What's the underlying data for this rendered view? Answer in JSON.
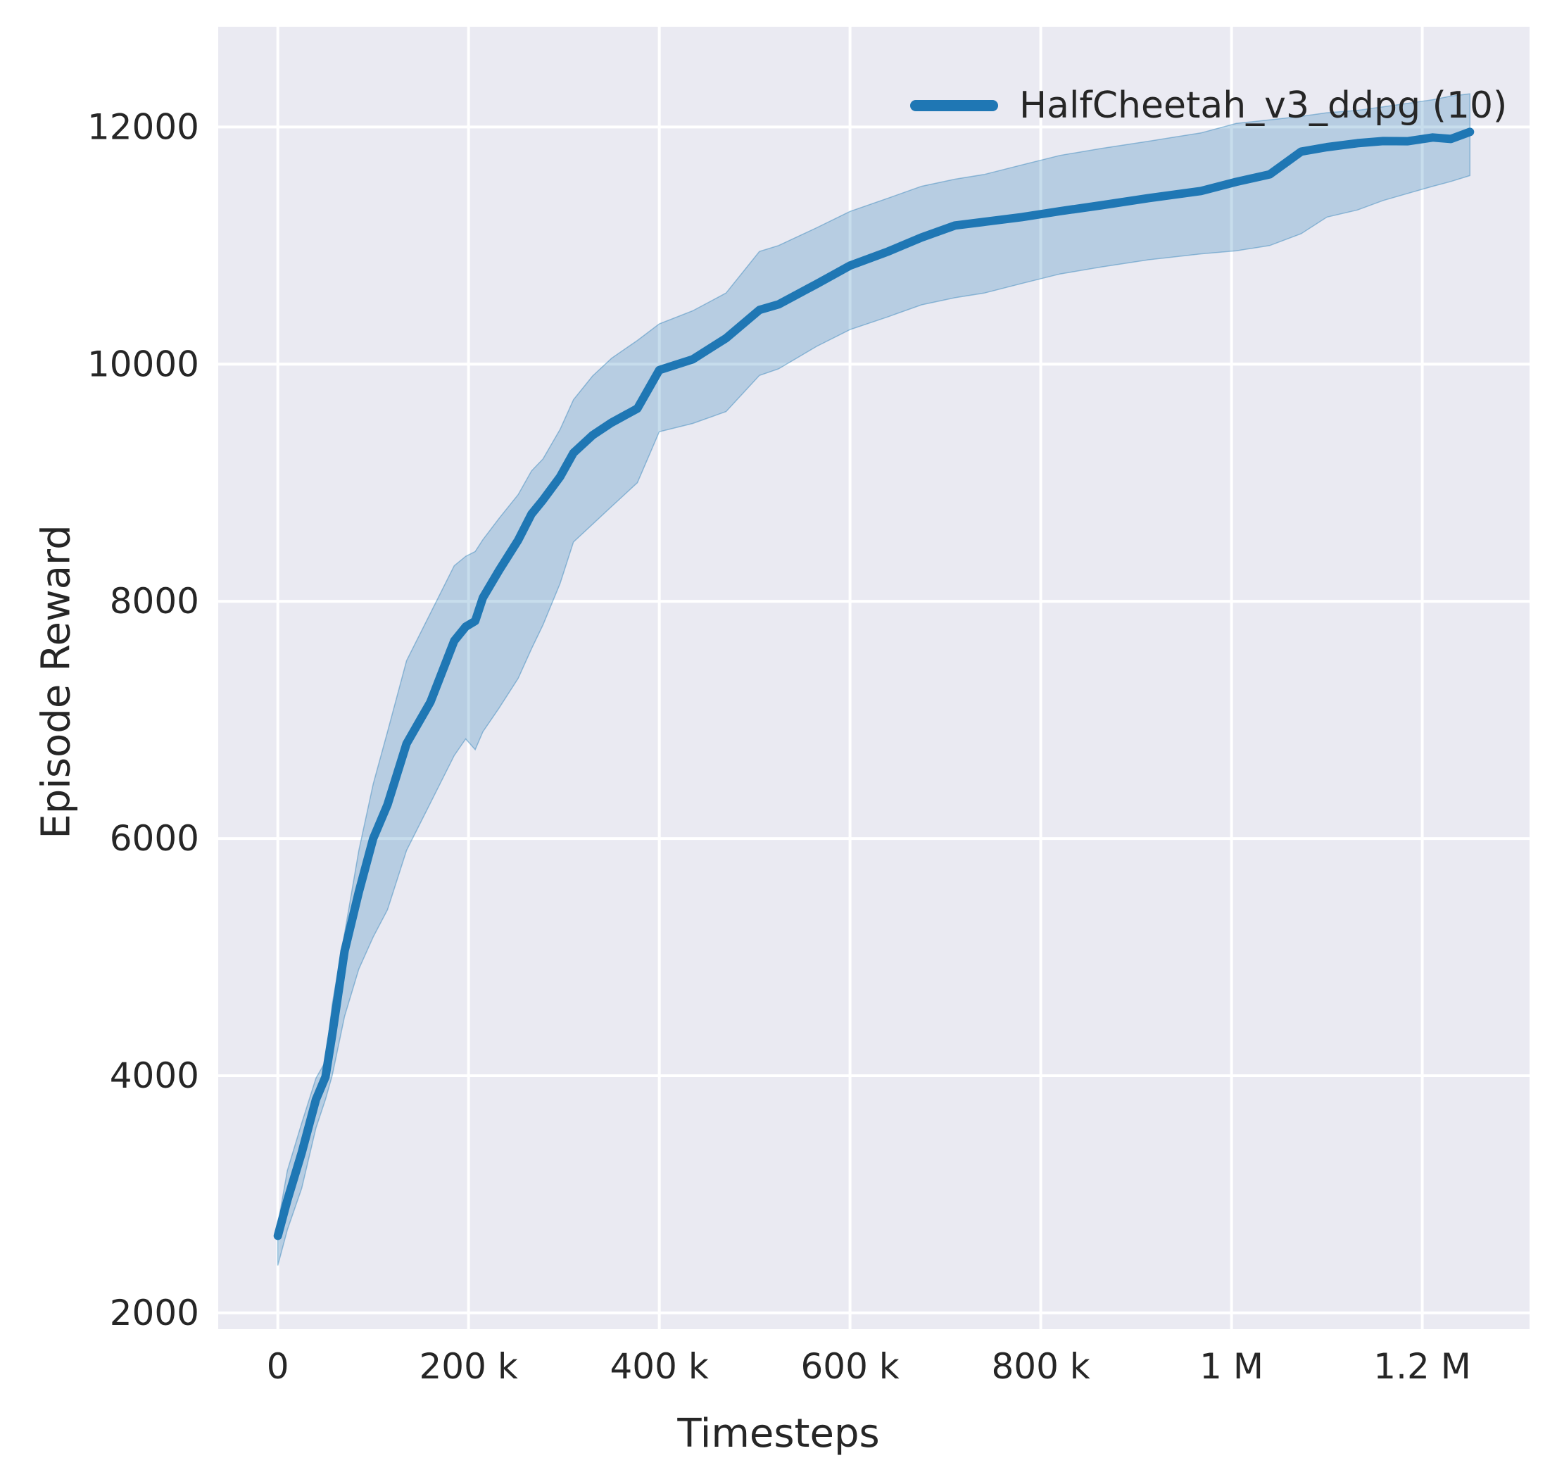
{
  "figure": {
    "background": "#ffffff"
  },
  "plot": {
    "background": "#eaeaf2",
    "grid_color": "#ffffff",
    "text_color": "#262626"
  },
  "legend": {
    "label": "HalfCheetah_v3_ddpg (10)",
    "position": "upper right"
  },
  "chart_data": {
    "type": "line",
    "title": "",
    "xlabel": "Timesteps",
    "ylabel": "Episode Reward",
    "grid": true,
    "xlim": [
      -62500,
      1312500
    ],
    "ylim": [
      1863,
      12845
    ],
    "xticks": [
      {
        "value": 0,
        "label": "0"
      },
      {
        "value": 200000,
        "label": "200 k"
      },
      {
        "value": 400000,
        "label": "400 k"
      },
      {
        "value": 600000,
        "label": "600 k"
      },
      {
        "value": 800000,
        "label": "800 k"
      },
      {
        "value": 1000000,
        "label": "1 M"
      },
      {
        "value": 1200000,
        "label": "1.2 M"
      }
    ],
    "yticks": [
      {
        "value": 12000,
        "label": "12000"
      },
      {
        "value": 10000,
        "label": "10000"
      },
      {
        "value": 8000,
        "label": "8000"
      },
      {
        "value": 6000,
        "label": "6000"
      },
      {
        "value": 4000,
        "label": "4000"
      },
      {
        "value": 2000,
        "label": "2000"
      }
    ],
    "series": [
      {
        "name": "HalfCheetah_v3_ddpg (10)",
        "color": "#1f77b4",
        "band_fill_alpha": 0.25,
        "band_edge_alpha": 0.4,
        "line_width": 12,
        "x": [
          0,
          10000,
          25000,
          40000,
          50000,
          57000,
          70000,
          85000,
          100000,
          115000,
          135000,
          160000,
          185000,
          197000,
          207000,
          215000,
          232000,
          252000,
          266000,
          278000,
          296000,
          310000,
          330000,
          350000,
          377000,
          400000,
          435000,
          470000,
          505000,
          525000,
          565000,
          600000,
          640000,
          675000,
          710000,
          741000,
          780000,
          820000,
          864000,
          913000,
          968000,
          1005000,
          1040000,
          1073000,
          1100000,
          1132000,
          1159000,
          1185000,
          1211000,
          1230000,
          1250000
        ],
        "mean": [
          2650,
          2950,
          3350,
          3800,
          3990,
          4344,
          5050,
          5550,
          6000,
          6285,
          6800,
          7151,
          7667,
          7786,
          7834,
          8030,
          8261,
          8516,
          8736,
          8854,
          9050,
          9252,
          9400,
          9507,
          9626,
          9950,
          10041,
          10219,
          10457,
          10504,
          10676,
          10831,
          10950,
          11068,
          11169,
          11200,
          11240,
          11290,
          11340,
          11400,
          11460,
          11537,
          11600,
          11792,
          11830,
          11863,
          11881,
          11880,
          11911,
          11899,
          11958
        ],
        "lower": [
          2400,
          2700,
          3050,
          3560,
          3800,
          4000,
          4500,
          4900,
          5170,
          5400,
          5900,
          6300,
          6700,
          6840,
          6749,
          6900,
          7100,
          7350,
          7600,
          7800,
          8150,
          8500,
          8650,
          8800,
          9000,
          9430,
          9500,
          9600,
          9905,
          9960,
          10150,
          10291,
          10400,
          10500,
          10560,
          10600,
          10680,
          10760,
          10820,
          10880,
          10930,
          10956,
          11000,
          11100,
          11240,
          11300,
          11380,
          11440,
          11500,
          11540,
          11590
        ],
        "upper": [
          2745,
          3200,
          3600,
          3980,
          4120,
          4600,
          5200,
          5900,
          6460,
          6900,
          7500,
          7900,
          8300,
          8380,
          8420,
          8520,
          8700,
          8900,
          9100,
          9200,
          9450,
          9700,
          9900,
          10050,
          10200,
          10340,
          10450,
          10600,
          10950,
          11000,
          11150,
          11288,
          11400,
          11500,
          11560,
          11600,
          11680,
          11760,
          11820,
          11880,
          11950,
          12030,
          12060,
          12090,
          12120,
          12140,
          12170,
          12200,
          12230,
          12260,
          12280
        ]
      }
    ]
  }
}
